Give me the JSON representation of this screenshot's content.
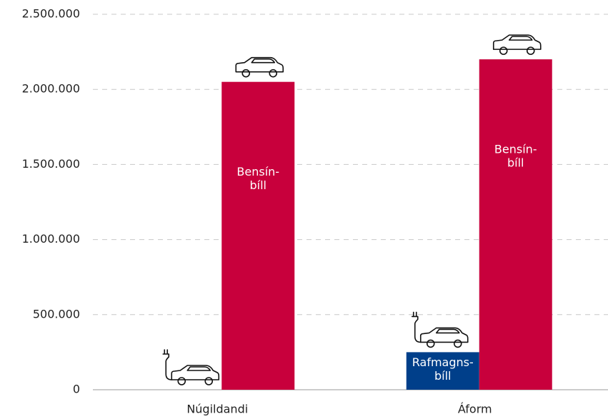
{
  "chart_data": {
    "type": "bar",
    "categories": [
      "Núgildandi",
      "Áform"
    ],
    "series": [
      {
        "label_lines": [
          "Rafmagns-",
          "bíll"
        ],
        "color": "#003f8a",
        "values": [
          0,
          250000
        ]
      },
      {
        "label_lines": [
          "Bensín-",
          "bíll"
        ],
        "color": "#c8003c",
        "values": [
          2050000,
          2200000
        ]
      }
    ],
    "ylim": [
      0,
      2500000
    ],
    "yticks": [
      0,
      {
        "value": 500000,
        "label": "500.000"
      },
      {
        "value": 1000000,
        "label": "1.000.000"
      },
      {
        "value": 1500000,
        "label": "1.500.000"
      },
      {
        "value": 2000000,
        "label": "2.000.000"
      },
      {
        "value": 2500000,
        "label": "2.500.000"
      }
    ],
    "grid": true
  }
}
